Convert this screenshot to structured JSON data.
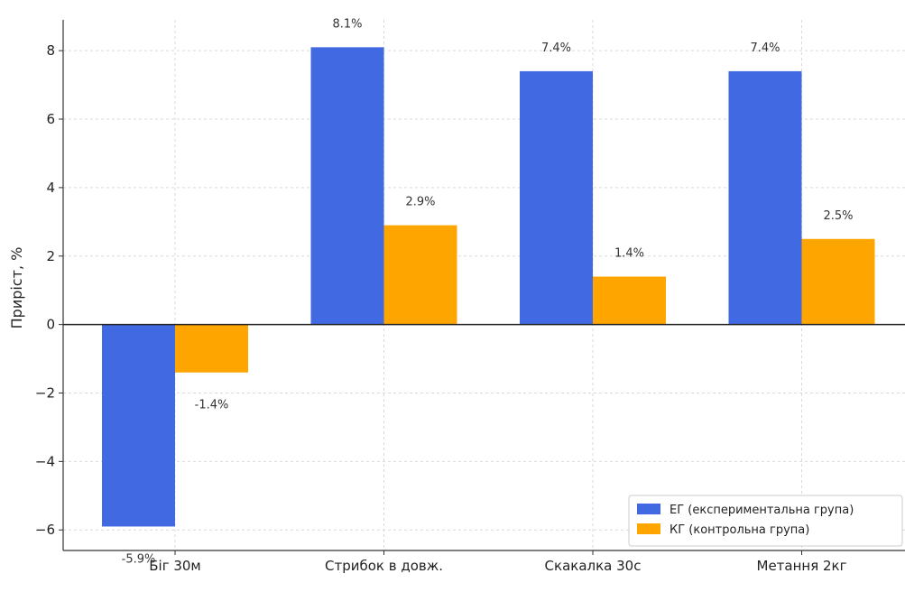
{
  "chart_data": {
    "type": "bar",
    "title": "",
    "xlabel": "",
    "ylabel": "Приріст, %",
    "categories": [
      "Біг 30м",
      "Стрибок в довж.",
      "Скакалка 30с",
      "Метання 2кг"
    ],
    "series": [
      {
        "name": "ЕГ (експериментальна група)",
        "color": "#4169e1",
        "values": [
          -5.9,
          8.1,
          7.4,
          7.4
        ],
        "labels": [
          "-5.9%",
          "8.1%",
          "7.4%",
          "7.4%"
        ]
      },
      {
        "name": "КГ (контрольна група)",
        "color": "#ffa500",
        "values": [
          -1.4,
          2.9,
          1.4,
          2.5
        ],
        "labels": [
          "-1.4%",
          "2.9%",
          "1.4%",
          "2.5%"
        ]
      }
    ],
    "ylim": [
      -6.6,
      8.9
    ],
    "yticks": [
      -6,
      -4,
      -2,
      0,
      2,
      4,
      6,
      8
    ],
    "ytick_labels": [
      "−6",
      "−4",
      "−2",
      "0",
      "2",
      "4",
      "6",
      "8"
    ],
    "grid": true,
    "legend_position": "bottom-right"
  }
}
